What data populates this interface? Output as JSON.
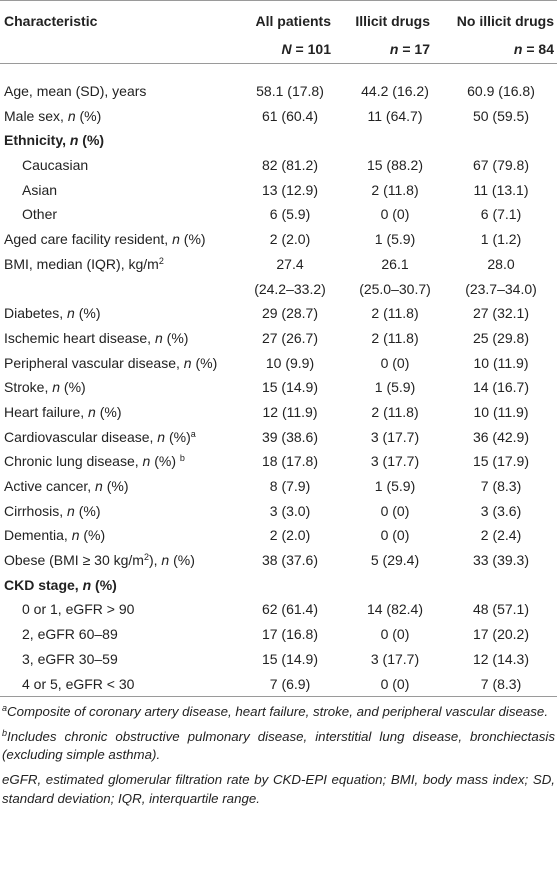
{
  "table": {
    "columns": [
      {
        "title": "Characteristic"
      },
      {
        "title": "All patients",
        "count": [
          {
            "text": "N",
            "style": "italic"
          },
          " = 101"
        ]
      },
      {
        "title": "Illicit drugs",
        "count": [
          {
            "text": "n",
            "style": "italic"
          },
          " = 17"
        ]
      },
      {
        "title": "No illicit drugs",
        "count": [
          {
            "text": "n",
            "style": "italic"
          },
          " = 84"
        ]
      }
    ],
    "rows": [
      {
        "kind": "item",
        "label": [
          "Age, mean (SD), years"
        ],
        "values": [
          "58.1 (17.8)",
          "44.2 (16.2)",
          "60.9 (16.8)"
        ]
      },
      {
        "kind": "item",
        "label": [
          "Male sex, ",
          {
            "text": "n",
            "style": "italic"
          },
          " (%)"
        ],
        "values": [
          "61 (60.4)",
          "11 (64.7)",
          "50 (59.5)"
        ]
      },
      {
        "kind": "section",
        "label": [
          "Ethnicity, ",
          {
            "text": "n",
            "style": "italic"
          },
          " (%)"
        ]
      },
      {
        "kind": "subitem",
        "label": [
          "Caucasian"
        ],
        "values": [
          "82 (81.2)",
          "15 (88.2)",
          "67 (79.8)"
        ]
      },
      {
        "kind": "subitem",
        "label": [
          "Asian"
        ],
        "values": [
          "13 (12.9)",
          "2 (11.8)",
          "11 (13.1)"
        ]
      },
      {
        "kind": "subitem",
        "label": [
          "Other"
        ],
        "values": [
          "6 (5.9)",
          "0 (0)",
          "6 (7.1)"
        ]
      },
      {
        "kind": "item",
        "label": [
          "Aged care facility resident, ",
          {
            "text": "n",
            "style": "italic"
          },
          " (%)"
        ],
        "values": [
          "2 (2.0)",
          "1 (5.9)",
          "1 (1.2)"
        ]
      },
      {
        "kind": "item",
        "label": [
          "BMI, median (IQR), kg/m",
          {
            "text": "2",
            "style": "sup"
          }
        ],
        "values": [
          [
            "27.4",
            "(24.2–33.2)"
          ],
          [
            "26.1",
            "(25.0–30.7)"
          ],
          [
            "28.0",
            "(23.7–34.0)"
          ]
        ]
      },
      {
        "kind": "item",
        "label": [
          "Diabetes, ",
          {
            "text": "n",
            "style": "italic"
          },
          " (%)"
        ],
        "values": [
          "29 (28.7)",
          "2 (11.8)",
          "27 (32.1)"
        ]
      },
      {
        "kind": "item",
        "label": [
          "Ischemic heart disease, ",
          {
            "text": "n",
            "style": "italic"
          },
          " (%)"
        ],
        "values": [
          "27 (26.7)",
          "2 (11.8)",
          "25 (29.8)"
        ]
      },
      {
        "kind": "item",
        "label": [
          "Peripheral vascular disease, ",
          {
            "text": "n",
            "style": "italic"
          },
          " (%)"
        ],
        "values": [
          "10 (9.9)",
          "0 (0)",
          "10 (11.9)"
        ]
      },
      {
        "kind": "item",
        "label": [
          "Stroke, ",
          {
            "text": "n",
            "style": "italic"
          },
          " (%)"
        ],
        "values": [
          "15 (14.9)",
          "1 (5.9)",
          "14 (16.7)"
        ]
      },
      {
        "kind": "item",
        "label": [
          "Heart failure, ",
          {
            "text": "n",
            "style": "italic"
          },
          " (%)"
        ],
        "values": [
          "12 (11.9)",
          "2 (11.8)",
          "10 (11.9)"
        ]
      },
      {
        "kind": "item",
        "label": [
          "Cardiovascular disease, ",
          {
            "text": "n",
            "style": "italic"
          },
          " (%)",
          {
            "text": "a",
            "style": "sup"
          }
        ],
        "values": [
          "39 (38.6)",
          "3 (17.7)",
          "36 (42.9)"
        ]
      },
      {
        "kind": "item",
        "label": [
          "Chronic lung disease, ",
          {
            "text": "n",
            "style": "italic"
          },
          " (%) ",
          {
            "text": "b",
            "style": "sup"
          }
        ],
        "values": [
          "18 (17.8)",
          "3 (17.7)",
          "15 (17.9)"
        ]
      },
      {
        "kind": "item",
        "label": [
          "Active cancer, ",
          {
            "text": "n",
            "style": "italic"
          },
          " (%)"
        ],
        "values": [
          "8 (7.9)",
          "1 (5.9)",
          "7 (8.3)"
        ]
      },
      {
        "kind": "item",
        "label": [
          "Cirrhosis, ",
          {
            "text": "n",
            "style": "italic"
          },
          " (%)"
        ],
        "values": [
          "3 (3.0)",
          "0 (0)",
          "3 (3.6)"
        ]
      },
      {
        "kind": "item",
        "label": [
          "Dementia, ",
          {
            "text": "n",
            "style": "italic"
          },
          " (%)"
        ],
        "values": [
          "2 (2.0)",
          "0 (0)",
          "2 (2.4)"
        ]
      },
      {
        "kind": "item",
        "label": [
          "Obese (BMI ≥ 30 kg/m",
          {
            "text": "2",
            "style": "sup"
          },
          "), ",
          {
            "text": "n",
            "style": "italic"
          },
          " (%)"
        ],
        "values": [
          "38 (37.6)",
          "5 (29.4)",
          "33 (39.3)"
        ]
      },
      {
        "kind": "section",
        "label": [
          "CKD stage, ",
          {
            "text": "n",
            "style": "italic"
          },
          " (%)"
        ]
      },
      {
        "kind": "subitem",
        "label": [
          "0 or 1, eGFR > 90"
        ],
        "values": [
          "62 (61.4)",
          "14 (82.4)",
          "48 (57.1)"
        ]
      },
      {
        "kind": "subitem",
        "label": [
          "2, eGFR 60–89"
        ],
        "values": [
          "17 (16.8)",
          "0 (0)",
          "17 (20.2)"
        ]
      },
      {
        "kind": "subitem",
        "label": [
          "3, eGFR 30–59"
        ],
        "values": [
          "15 (14.9)",
          "3 (17.7)",
          "12 (14.3)"
        ]
      },
      {
        "kind": "subitem",
        "label": [
          "4 or 5, eGFR < 30"
        ],
        "values": [
          "7 (6.9)",
          "0 (0)",
          "7 (8.3)"
        ]
      }
    ],
    "footnotes": [
      [
        {
          "text": "a",
          "style": "sup"
        },
        "Composite of coronary artery disease, heart failure, stroke, and peripheral vascular disease."
      ],
      [
        {
          "text": "b",
          "style": "sup"
        },
        "Includes chronic obstructive pulmonary disease, interstitial lung disease, bronchiectasis (excluding simple asthma)."
      ],
      [
        "eGFR, estimated glomerular filtration rate by CKD-EPI equation; BMI, body mass index; SD, standard deviation; IQR, interquartile range."
      ]
    ]
  }
}
